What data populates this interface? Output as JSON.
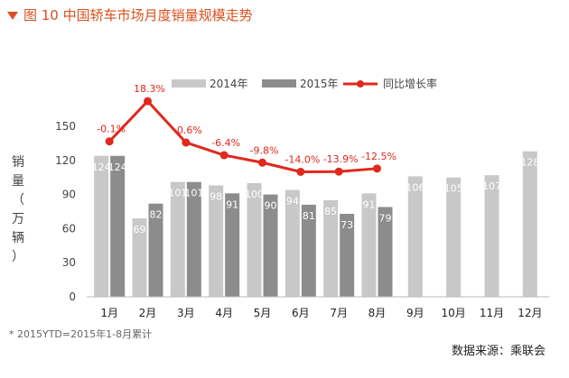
{
  "title": "图 10  中国轿车市场月度销量规模走势",
  "footnote": "* 2015YTD=2015年1-8月累计",
  "source": "数据来源：乘联会",
  "ylabel_chars": [
    "销",
    "量",
    "（",
    "万",
    "辆",
    "）"
  ],
  "colors": {
    "s2014": "#c8c8c8",
    "s2015": "#8c8c8c",
    "growth": "#e0281c",
    "title": "#d9501e"
  },
  "chart_data": {
    "type": "bar",
    "categories": [
      "1月",
      "2月",
      "3月",
      "4月",
      "5月",
      "6月",
      "7月",
      "8月",
      "9月",
      "10月",
      "11月",
      "12月"
    ],
    "ylim": [
      0,
      150
    ],
    "yticks": [
      0,
      30,
      60,
      90,
      120,
      150
    ],
    "ylabel": "销量（万辆）",
    "series": [
      {
        "name": "2014年",
        "values": [
          124,
          69,
          101,
          98,
          100,
          94,
          85,
          91,
          106,
          105,
          107,
          128
        ]
      },
      {
        "name": "2015年",
        "values": [
          124,
          82,
          101,
          91,
          90,
          81,
          73,
          79,
          null,
          null,
          null,
          null
        ]
      }
    ],
    "growth": {
      "name": "同比增长率",
      "values": [
        -0.1,
        18.3,
        -0.6,
        -6.4,
        -9.8,
        -14.0,
        -13.9,
        -12.5
      ],
      "labels": [
        "-0.1%",
        "18.3%",
        "-0.6%",
        "-6.4%",
        "-9.8%",
        "-14.0%",
        "-13.9%",
        "-12.5%"
      ]
    },
    "legend_position": "top"
  }
}
